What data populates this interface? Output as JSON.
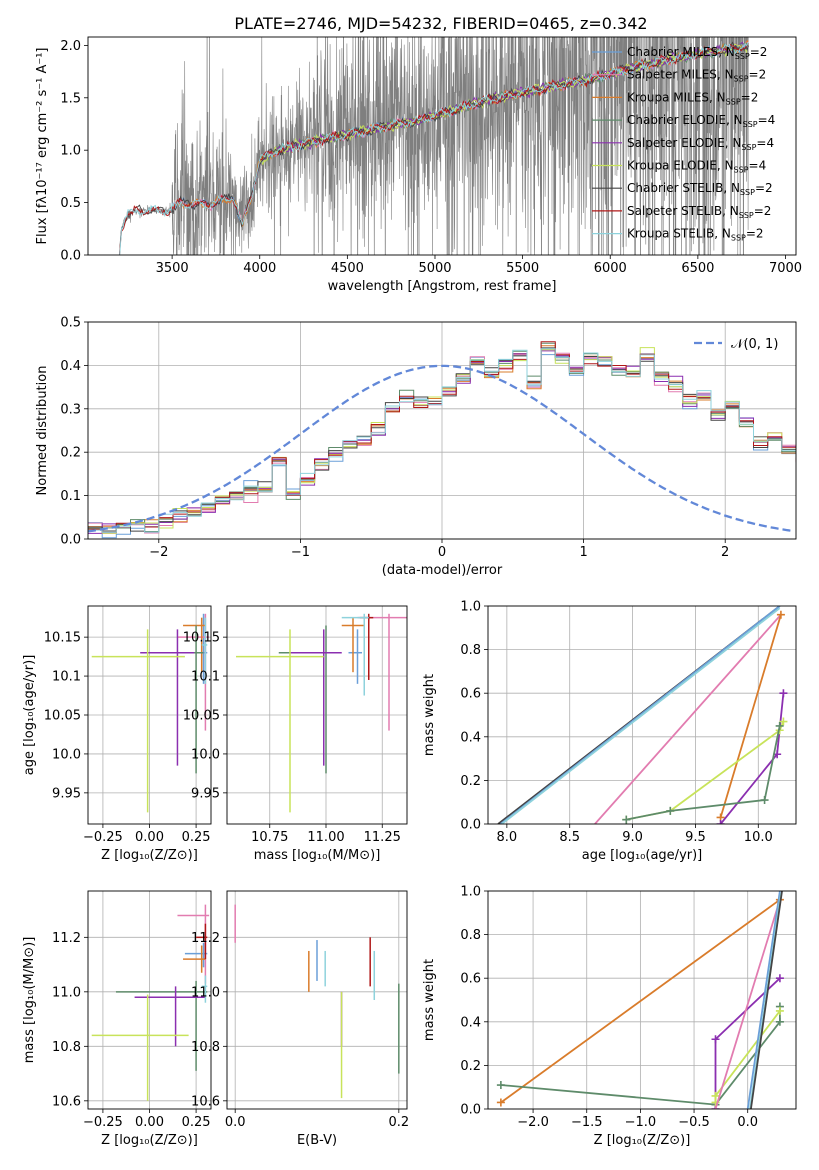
{
  "title": "PLATE=2746, MJD=54232, FIBERID=0465, z=0.342",
  "colors": {
    "gray": "#7f7f7f",
    "chabrier_miles": "#6a9fd8",
    "salpeter_miles": "#e27cb0",
    "kroupa_miles": "#d97c2b",
    "chabrier_elodie": "#5e8b6a",
    "salpeter_elodie": "#8b2fb0",
    "kroupa_elodie": "#c8e35a",
    "chabrier_stelib": "#444444",
    "salpeter_stelib": "#b01818",
    "kroupa_stelib": "#8ed2dc",
    "gauss": "#6288d8",
    "grid": "#b0b0b0"
  },
  "chart_data": [
    {
      "id": "spectrum",
      "type": "line",
      "title": "PLATE=2746, MJD=54232, FIBERID=0465, z=0.342",
      "xlabel": "wavelength [Angstrom, rest frame]",
      "ylabel": "Flux [fλ10⁻¹⁷ erg cm⁻² s⁻¹ A⁻¹]",
      "xlim": [
        3020,
        7060
      ],
      "ylim": [
        0,
        2.08
      ],
      "xticks": [
        3500,
        4000,
        4500,
        5000,
        5500,
        6000,
        6500,
        7000
      ],
      "yticks": [
        0.0,
        0.5,
        1.0,
        1.5,
        2.0
      ],
      "legend": "upper-right",
      "data_noise_by_range": [
        [
          3200,
          3500,
          0.02
        ],
        [
          3500,
          3800,
          0.5
        ],
        [
          3800,
          4300,
          0.3
        ],
        [
          4300,
          5000,
          0.7
        ],
        [
          5000,
          5800,
          0.9
        ],
        [
          5800,
          6800,
          1.5
        ]
      ],
      "continuum": {
        "x": [
          3200,
          3210,
          3250,
          3300,
          3400,
          3480,
          3550,
          3700,
          3850,
          3900,
          3950,
          4000,
          4100,
          4300,
          4500,
          4700,
          4900,
          5100,
          5300,
          5500,
          5700,
          5900,
          6100,
          6300,
          6500,
          6700,
          6790
        ],
        "y": [
          0.0,
          0.25,
          0.4,
          0.42,
          0.43,
          0.42,
          0.5,
          0.48,
          0.55,
          0.28,
          0.55,
          0.9,
          1.0,
          1.08,
          1.15,
          1.22,
          1.28,
          1.38,
          1.48,
          1.55,
          1.62,
          1.68,
          1.78,
          1.85,
          1.92,
          1.97,
          2.0
        ]
      },
      "legend_entries": [
        "Chabrier MILES, N_SSP=2",
        "Salpeter MILES, N_SSP=2",
        "Kroupa MILES, N_SSP=2",
        "Chabrier ELODIE, N_SSP=4",
        "Salpeter ELODIE, N_SSP=4",
        "Kroupa ELODIE, N_SSP=4",
        "Chabrier STELIB, N_SSP=2",
        "Salpeter STELIB, N_SSP=2",
        "Kroupa STELIB, N_SSP=2"
      ]
    },
    {
      "id": "residuals",
      "type": "line",
      "xlabel": "(data-model)/error",
      "ylabel": "Normed distribution",
      "xlim": [
        -2.5,
        2.5
      ],
      "ylim": [
        0,
        0.5
      ],
      "xticks": [
        -2,
        -1,
        0,
        1,
        2
      ],
      "yticks": [
        0.0,
        0.1,
        0.2,
        0.3,
        0.4,
        0.5
      ],
      "legend": "upper-right",
      "gauss_label": "𝒩(0, 1)",
      "bin_width": 0.1,
      "base_histogram": [
        0.02,
        0.02,
        0.03,
        0.03,
        0.03,
        0.04,
        0.05,
        0.06,
        0.07,
        0.09,
        0.1,
        0.11,
        0.12,
        0.18,
        0.1,
        0.14,
        0.17,
        0.2,
        0.22,
        0.23,
        0.25,
        0.3,
        0.33,
        0.31,
        0.32,
        0.34,
        0.37,
        0.41,
        0.38,
        0.4,
        0.42,
        0.36,
        0.44,
        0.42,
        0.39,
        0.42,
        0.41,
        0.39,
        0.38,
        0.42,
        0.37,
        0.36,
        0.32,
        0.33,
        0.29,
        0.31,
        0.27,
        0.22,
        0.24,
        0.21,
        0.19,
        0.15,
        0.12,
        0.1,
        0.09,
        0.08,
        0.07,
        0.06,
        0.05,
        0.04,
        0.05,
        0.03,
        0.04,
        0.03,
        0.03,
        0.02,
        0.03,
        0.02,
        0.03,
        0.02,
        0.03,
        0.02,
        0.02,
        0.02,
        0.03,
        0.02,
        0.02,
        0.02,
        0.02,
        0.01,
        0.01,
        0.01,
        0.02,
        0.01,
        0.02,
        0.01,
        0.01,
        0.01,
        0.01,
        0.01,
        0.01,
        0.01,
        0.02,
        0.02,
        0.02,
        0.02,
        0.03,
        0.03,
        0.04,
        0.04
      ]
    },
    {
      "id": "age_vs_Z",
      "type": "scatter",
      "xlabel": "Z [log₁₀(Z/Z⊙)]",
      "ylabel": "age  [log₁₀(age/yr)]",
      "xlim": [
        -0.33,
        0.33
      ],
      "ylim": [
        9.91,
        10.19
      ],
      "xticks": [
        -0.25,
        0.0,
        0.25
      ],
      "xticklabels": [
        "−0.25",
        "0.00",
        "0.25"
      ],
      "yticks": [
        9.95,
        10.0,
        10.05,
        10.1,
        10.15
      ],
      "points": [
        {
          "c": "chabrier_miles",
          "x": 0.29,
          "y": 10.13,
          "xe": [
            0.02,
            0.02
          ],
          "ye": [
            0.04,
            0.05
          ]
        },
        {
          "c": "salpeter_miles",
          "x": 0.3,
          "y": 10.15,
          "xe": [
            0.15,
            0.02
          ],
          "ye": [
            0.12,
            0.03
          ]
        },
        {
          "c": "kroupa_miles",
          "x": 0.28,
          "y": 10.165,
          "xe": [
            0.1,
            0.02
          ],
          "ye": [
            0.06,
            0.01
          ]
        },
        {
          "c": "chabrier_elodie",
          "x": 0.25,
          "y": 10.13,
          "xe": [
            0.19,
            0.04
          ],
          "ye": [
            0.155,
            0.035
          ]
        },
        {
          "c": "salpeter_elodie",
          "x": 0.15,
          "y": 10.13,
          "xe": [
            0.2,
            0.09
          ],
          "ye": [
            0.145,
            0.03
          ]
        },
        {
          "c": "kroupa_elodie",
          "x": -0.01,
          "y": 10.125,
          "xe": [
            0.3,
            0.2
          ],
          "ye": [
            0.2,
            0.035
          ]
        },
        {
          "c": "kroupa_stelib",
          "x": 0.3,
          "y": 10.14,
          "xe": [
            0.02,
            0.01
          ],
          "ye": [
            0.05,
            0.035
          ]
        }
      ]
    },
    {
      "id": "age_vs_mass",
      "type": "scatter",
      "xlabel": "mass [log₁₀(M/M⊙)]",
      "ylabel": "",
      "xlim": [
        10.56,
        11.36
      ],
      "ylim": [
        9.91,
        10.19
      ],
      "xticks": [
        10.75,
        11.0,
        11.25
      ],
      "xticklabels": [
        "10.75",
        "11.00",
        "11.25"
      ],
      "yticks": [
        9.95,
        10.0,
        10.05,
        10.1,
        10.15
      ],
      "points": [
        {
          "c": "chabrier_miles",
          "x": 11.14,
          "y": 10.13,
          "xe": [
            0.04,
            0.02
          ],
          "ye": [
            0.04,
            0.03
          ]
        },
        {
          "c": "salpeter_miles",
          "x": 11.28,
          "y": 10.175,
          "xe": [
            0.14,
            0.08
          ],
          "ye": [
            0.145,
            0.005
          ]
        },
        {
          "c": "kroupa_miles",
          "x": 11.12,
          "y": 10.165,
          "xe": [
            0.05,
            0.05
          ],
          "ye": [
            0.06,
            0.01
          ]
        },
        {
          "c": "chabrier_elodie",
          "x": 11.0,
          "y": 10.13,
          "xe": [
            0.21,
            0.04
          ],
          "ye": [
            0.155,
            0.035
          ]
        },
        {
          "c": "salpeter_elodie",
          "x": 10.99,
          "y": 10.13,
          "xe": [
            0.15,
            0.08
          ],
          "ye": [
            0.145,
            0.03
          ]
        },
        {
          "c": "kroupa_elodie",
          "x": 10.84,
          "y": 10.125,
          "xe": [
            0.24,
            0.15
          ],
          "ye": [
            0.2,
            0.035
          ]
        },
        {
          "c": "salpeter_stelib",
          "x": 11.19,
          "y": 10.175,
          "xe": [
            0.04,
            0.02
          ],
          "ye": [
            0.08,
            0.005
          ]
        },
        {
          "c": "kroupa_stelib",
          "x": 11.17,
          "y": 10.175,
          "xe": [
            0.1,
            0.02
          ],
          "ye": [
            0.1,
            0.005
          ]
        }
      ]
    },
    {
      "id": "weight_vs_age",
      "type": "line",
      "xlabel": "age  [log₁₀(age/yr)]",
      "ylabel": "mass weight",
      "xlim": [
        7.85,
        10.3
      ],
      "ylim": [
        0.0,
        1.0
      ],
      "xticks": [
        8.0,
        8.5,
        9.0,
        9.5,
        10.0
      ],
      "xticklabels": [
        "8.0",
        "8.5",
        "9.0",
        "9.5",
        "10.0"
      ],
      "yticks": [
        0.0,
        0.2,
        0.4,
        0.6,
        0.8,
        1.0
      ],
      "series": [
        {
          "c": "chabrier_stelib",
          "pts": [
            [
              7.93,
              0.0
            ],
            [
              10.17,
              1.0
            ]
          ]
        },
        {
          "c": "chabrier_miles",
          "pts": [
            [
              7.95,
              0.0
            ],
            [
              10.17,
              1.0
            ]
          ]
        },
        {
          "c": "kroupa_stelib",
          "pts": [
            [
              7.96,
              0.0
            ],
            [
              10.17,
              0.99
            ]
          ]
        },
        {
          "c": "salpeter_miles",
          "pts": [
            [
              8.7,
              0.0
            ],
            [
              10.18,
              0.96
            ]
          ]
        },
        {
          "c": "kroupa_miles",
          "pts": [
            [
              9.7,
              0.03
            ],
            [
              10.18,
              0.96
            ]
          ],
          "markers": true
        },
        {
          "c": "salpeter_elodie",
          "pts": [
            [
              9.7,
              0.0
            ],
            [
              10.15,
              0.32
            ],
            [
              10.2,
              0.6
            ]
          ],
          "markers": true
        },
        {
          "c": "kroupa_elodie",
          "pts": [
            [
              8.95,
              0.02
            ],
            [
              9.3,
              0.06
            ],
            [
              10.17,
              0.43
            ],
            [
              10.2,
              0.47
            ]
          ],
          "markers": true
        },
        {
          "c": "chabrier_elodie",
          "pts": [
            [
              8.95,
              0.02
            ],
            [
              9.3,
              0.06
            ],
            [
              10.05,
              0.11
            ],
            [
              10.17,
              0.45
            ]
          ],
          "markers": true
        }
      ]
    },
    {
      "id": "mass_vs_Z",
      "type": "scatter",
      "xlabel": "Z [log₁₀(Z/Z⊙)]",
      "ylabel": "mass [log₁₀(M/M⊙)]",
      "xlim": [
        -0.33,
        0.33
      ],
      "ylim": [
        10.57,
        11.37
      ],
      "xticks": [
        -0.25,
        0.0,
        0.25
      ],
      "xticklabels": [
        "−0.25",
        "0.00",
        "0.25"
      ],
      "yticks": [
        10.6,
        10.8,
        11.0,
        11.2
      ],
      "points": [
        {
          "c": "salpeter_miles",
          "x": 0.3,
          "y": 11.28,
          "xe": [
            0.15,
            0.02
          ],
          "ye": [
            0.25,
            0.04
          ]
        },
        {
          "c": "chabrier_miles",
          "x": 0.29,
          "y": 11.14,
          "xe": [
            0.1,
            0.02
          ],
          "ye": [
            0.05,
            0.04
          ]
        },
        {
          "c": "kroupa_miles",
          "x": 0.28,
          "y": 11.12,
          "xe": [
            0.1,
            0.02
          ],
          "ye": [
            0.05,
            0.05
          ]
        },
        {
          "c": "salpeter_stelib",
          "x": 0.3,
          "y": 11.2,
          "xe": [
            0.05,
            0.01
          ],
          "ye": [
            0.08,
            0.05
          ]
        },
        {
          "c": "chabrier_elodie",
          "x": 0.25,
          "y": 11.0,
          "xe": [
            0.43,
            0.06
          ],
          "ye": [
            0.29,
            0.04
          ]
        },
        {
          "c": "salpeter_elodie",
          "x": 0.14,
          "y": 10.98,
          "xe": [
            0.22,
            0.16
          ],
          "ye": [
            0.18,
            0.04
          ]
        },
        {
          "c": "kroupa_elodie",
          "x": -0.01,
          "y": 10.84,
          "xe": [
            0.3,
            0.22
          ],
          "ye": [
            0.24,
            0.15
          ]
        },
        {
          "c": "kroupa_stelib",
          "x": 0.3,
          "y": 11.02,
          "xe": [
            0.02,
            0.01
          ],
          "ye": [
            0.06,
            0.04
          ]
        }
      ]
    },
    {
      "id": "mass_vs_EBV",
      "type": "scatter",
      "xlabel": "E(B-V)",
      "ylabel": "",
      "xlim": [
        -0.01,
        0.21
      ],
      "ylim": [
        10.57,
        11.37
      ],
      "xticks": [
        0.0,
        0.2
      ],
      "xticklabels": [
        "0.0",
        "0.2"
      ],
      "yticks": [
        10.6,
        10.8,
        11.0,
        11.2
      ],
      "points": [
        {
          "c": "salpeter_miles",
          "x": 0.0,
          "y": 11.28,
          "xe": [
            0,
            0
          ],
          "ye": [
            0.1,
            0.04
          ]
        },
        {
          "c": "kroupa_miles",
          "x": 0.09,
          "y": 11.1,
          "xe": [
            0,
            0
          ],
          "ye": [
            0.1,
            0.05
          ]
        },
        {
          "c": "chabrier_miles",
          "x": 0.1,
          "y": 11.14,
          "xe": [
            0,
            0
          ],
          "ye": [
            0.1,
            0.05
          ]
        },
        {
          "c": "kroupa_stelib",
          "x": 0.11,
          "y": 11.1,
          "xe": [
            0,
            0
          ],
          "ye": [
            0.08,
            0.05
          ]
        },
        {
          "c": "salpeter_elodie",
          "x": 0.13,
          "y": 10.95,
          "xe": [
            0,
            0
          ],
          "ye": [
            0.15,
            0.05
          ]
        },
        {
          "c": "kroupa_elodie",
          "x": 0.13,
          "y": 10.85,
          "xe": [
            0,
            0
          ],
          "ye": [
            0.24,
            0.15
          ]
        },
        {
          "c": "salpeter_stelib",
          "x": 0.165,
          "y": 11.1,
          "xe": [
            0,
            0
          ],
          "ye": [
            0.08,
            0.1
          ]
        },
        {
          "c": "kroupa_stelib",
          "x": 0.17,
          "y": 11.05,
          "xe": [
            0,
            0
          ],
          "ye": [
            0.08,
            0.1
          ]
        },
        {
          "c": "chabrier_elodie",
          "x": 0.2,
          "y": 10.85,
          "xe": [
            0,
            0
          ],
          "ye": [
            0.15,
            0.18
          ]
        }
      ]
    },
    {
      "id": "weight_vs_Z",
      "type": "line",
      "xlabel": "Z [log₁₀(Z/Z⊙)]",
      "ylabel": "mass weight",
      "xlim": [
        -2.42,
        0.45
      ],
      "ylim": [
        0.0,
        1.0
      ],
      "xticks": [
        -2.0,
        -1.5,
        -1.0,
        -0.5,
        0.0
      ],
      "xticklabels": [
        "−2.0",
        "−1.5",
        "−1.0",
        "−0.5",
        "0.0"
      ],
      "yticks": [
        0.0,
        0.2,
        0.4,
        0.6,
        0.8,
        1.0
      ],
      "series": [
        {
          "c": "kroupa_miles",
          "pts": [
            [
              -2.3,
              0.03
            ],
            [
              0.3,
              0.96
            ]
          ],
          "markers": true
        },
        {
          "c": "chabrier_elodie",
          "pts": [
            [
              -2.3,
              0.11
            ],
            [
              -0.3,
              0.02
            ],
            [
              0.3,
              0.4
            ],
            [
              0.3,
              0.47
            ]
          ],
          "markers": true
        },
        {
          "c": "salpeter_elodie",
          "pts": [
            [
              -0.3,
              0.0
            ],
            [
              -0.3,
              0.32
            ],
            [
              0.3,
              0.6
            ]
          ],
          "markers": true
        },
        {
          "c": "kroupa_elodie",
          "pts": [
            [
              -0.3,
              0.03
            ],
            [
              -0.3,
              0.06
            ],
            [
              0.3,
              0.45
            ]
          ],
          "markers": true
        },
        {
          "c": "salpeter_miles",
          "pts": [
            [
              -0.3,
              0.0
            ],
            [
              0.3,
              0.96
            ]
          ]
        },
        {
          "c": "chabrier_miles",
          "pts": [
            [
              0.0,
              0.0
            ],
            [
              0.3,
              1.0
            ]
          ]
        },
        {
          "c": "kroupa_stelib",
          "pts": [
            [
              0.02,
              0.0
            ],
            [
              0.31,
              0.99
            ]
          ]
        },
        {
          "c": "chabrier_stelib",
          "pts": [
            [
              0.03,
              0.0
            ],
            [
              0.32,
              1.0
            ]
          ]
        }
      ]
    }
  ]
}
